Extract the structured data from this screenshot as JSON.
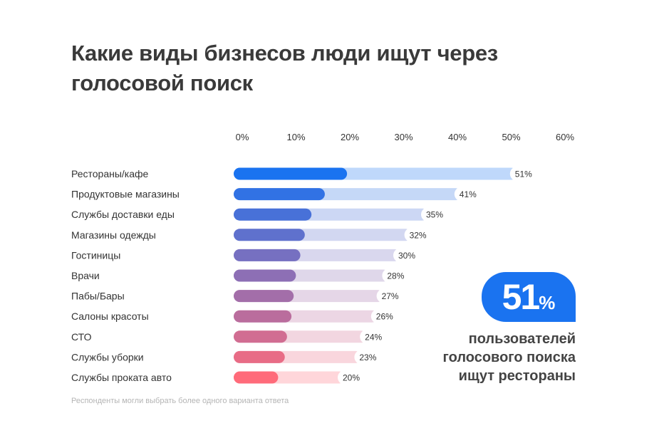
{
  "title": "Какие виды бизнесов люди ищут через голосовой поиск",
  "note": "Респонденты могли выбрать более одного варианта ответа",
  "callout": {
    "value": "51",
    "unit": "%",
    "lines": [
      "пользователей",
      "голосового поиска",
      "ищут рестораны"
    ],
    "color": "#1a73f0"
  },
  "chart_data": {
    "type": "bar",
    "orientation": "horizontal",
    "title": "Какие виды бизнесов люди ищут через голосовой поиск",
    "categories": [
      "Рестораны/кафе",
      "Продуктовые магазины",
      "Службы доставки еды",
      "Магазины одежды",
      "Гостиницы",
      "Врачи",
      "Пабы/Бары",
      "Салоны красоты",
      "СТО",
      "Службы уборки",
      "Службы проката авто"
    ],
    "values": [
      51,
      41,
      35,
      32,
      30,
      28,
      27,
      26,
      24,
      23,
      20
    ],
    "data_labels": [
      "51%",
      "41%",
      "35%",
      "32%",
      "30%",
      "28%",
      "27%",
      "26%",
      "24%",
      "23%",
      "20%"
    ],
    "xlim": [
      0,
      60
    ],
    "x_ticks": [
      "0%",
      "10%",
      "20%",
      "30%",
      "40%",
      "50%",
      "60%"
    ],
    "x_axis_position": "top",
    "grid": false,
    "colors": {
      "start": "#1a73f0",
      "end": "#ff6b7a"
    }
  }
}
